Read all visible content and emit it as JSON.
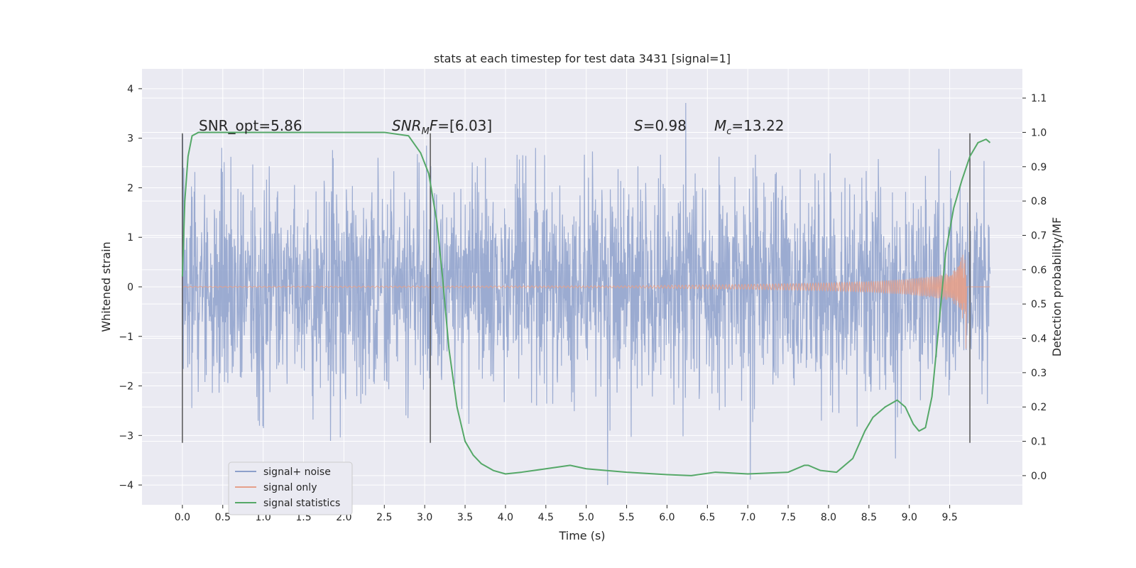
{
  "chart_data": {
    "type": "line",
    "title": "stats at each timestep for test data 3431 [signal=1]",
    "xlabel": "Time (s)",
    "ylabel": "Whitened strain",
    "ylabel_right": "Detection probability/MF",
    "xlim": [
      -0.5,
      10.4
    ],
    "ylim": [
      -4.4,
      4.4
    ],
    "ylim_right": [
      -0.085,
      1.185
    ],
    "xticks": [
      0.0,
      0.5,
      1.0,
      1.5,
      2.0,
      2.5,
      3.0,
      3.5,
      4.0,
      4.5,
      5.0,
      5.5,
      6.0,
      6.5,
      7.0,
      7.5,
      8.0,
      8.5,
      9.0,
      9.5
    ],
    "xtick_labels": [
      "0.0",
      "0.5",
      "1.0",
      "1.5",
      "2.0",
      "2.5",
      "3.0",
      "3.5",
      "4.0",
      "4.5",
      "5.0",
      "5.5",
      "6.0",
      "6.5",
      "7.0",
      "7.5",
      "8.0",
      "8.5",
      "9.0",
      "9.5"
    ],
    "yticks": [
      -4,
      -3,
      -2,
      -1,
      0,
      1,
      2,
      3,
      4
    ],
    "ytick_labels": [
      "−4",
      "−3",
      "−2",
      "−1",
      "0",
      "1",
      "2",
      "3",
      "4"
    ],
    "yticks_right": [
      0.0,
      0.1,
      0.2,
      0.3,
      0.4,
      0.5,
      0.6,
      0.7,
      0.8,
      0.9,
      1.0,
      1.1
    ],
    "ytick_labels_right": [
      "0.0",
      "0.1",
      "0.2",
      "0.3",
      "0.4",
      "0.5",
      "0.6",
      "0.7",
      "0.8",
      "0.9",
      "1.0",
      "1.1"
    ],
    "grid": true,
    "legend_position": "lower-left",
    "annotations": [
      {
        "text": "SNR_opt=5.86",
        "x": 0.2
      },
      {
        "text": "SNR_MF=[6.03]",
        "x": 2.6
      },
      {
        "text": "S=0.98",
        "x": 5.6
      },
      {
        "text": "M_c=13.22",
        "x": 6.6
      }
    ],
    "vertical_markers": [
      0.0,
      3.07,
      9.75
    ],
    "vertical_marker_range": [
      -3.15,
      3.1
    ],
    "series": [
      {
        "name": "signal+ noise",
        "color": "#8da0cb",
        "description": "whitened noisy strain, roughly gaussian, std about 1",
        "x_range": [
          0.0,
          10.0
        ],
        "approx_envelope": [
          -4.0,
          4.0
        ]
      },
      {
        "name": "signal only",
        "color": "#e5a08a",
        "description": "chirp signal growing in amplitude, merger near t=9.7",
        "x_range": [
          0.0,
          9.7
        ],
        "amplitude_points": [
          [
            0.0,
            0.01
          ],
          [
            5.5,
            0.02
          ],
          [
            7.0,
            0.05
          ],
          [
            8.0,
            0.08
          ],
          [
            8.5,
            0.11
          ],
          [
            9.0,
            0.16
          ],
          [
            9.3,
            0.22
          ],
          [
            9.5,
            0.28
          ],
          [
            9.6,
            0.4
          ],
          [
            9.7,
            0.85
          ]
        ]
      },
      {
        "name": "signal statistics",
        "color": "#55a868",
        "axis": "right",
        "x": [
          0.0,
          0.03,
          0.07,
          0.12,
          0.2,
          0.4,
          1.0,
          2.0,
          2.5,
          2.8,
          2.95,
          3.05,
          3.15,
          3.22,
          3.3,
          3.4,
          3.5,
          3.6,
          3.7,
          3.85,
          4.0,
          4.2,
          4.5,
          4.8,
          5.0,
          5.5,
          6.0,
          6.3,
          6.6,
          7.0,
          7.5,
          7.7,
          7.75,
          7.9,
          8.1,
          8.3,
          8.45,
          8.55,
          8.7,
          8.85,
          8.95,
          9.05,
          9.12,
          9.2,
          9.28,
          9.35,
          9.45,
          9.55,
          9.65,
          9.75,
          9.85,
          9.95,
          10.0
        ],
        "values": [
          0.58,
          0.8,
          0.93,
          0.99,
          1.0,
          1.0,
          1.0,
          1.0,
          1.0,
          0.99,
          0.94,
          0.88,
          0.74,
          0.58,
          0.37,
          0.2,
          0.1,
          0.06,
          0.035,
          0.015,
          0.005,
          0.01,
          0.02,
          0.03,
          0.02,
          0.01,
          0.003,
          0.0,
          0.01,
          0.005,
          0.01,
          0.03,
          0.03,
          0.015,
          0.01,
          0.05,
          0.13,
          0.17,
          0.2,
          0.22,
          0.2,
          0.15,
          0.13,
          0.14,
          0.23,
          0.4,
          0.65,
          0.78,
          0.86,
          0.93,
          0.97,
          0.98,
          0.97
        ]
      }
    ]
  }
}
